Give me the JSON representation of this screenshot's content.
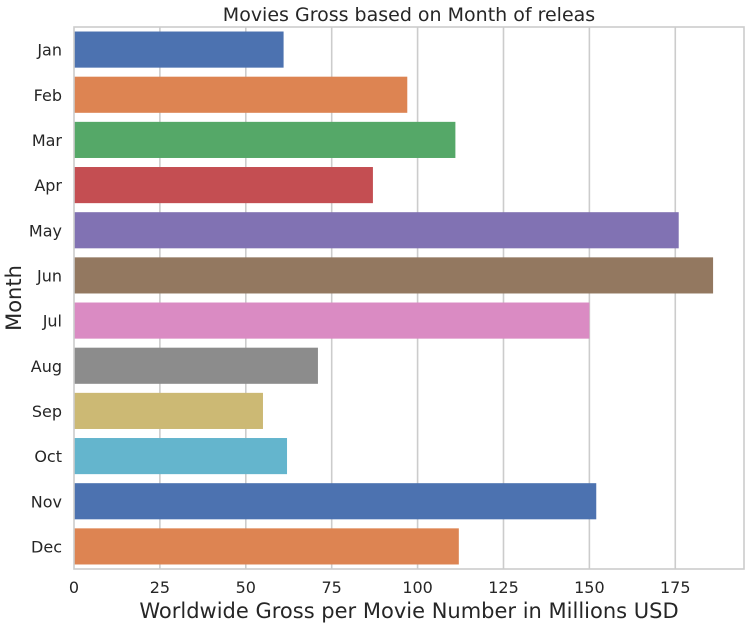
{
  "chart_data": {
    "type": "bar",
    "orientation": "horizontal",
    "title": "Movies Gross based on Month of releas",
    "xlabel": "Worldwide Gross per Movie Number in Millions USD",
    "ylabel": "Month",
    "categories": [
      "Jan",
      "Feb",
      "Mar",
      "Apr",
      "May",
      "Jun",
      "Jul",
      "Aug",
      "Sep",
      "Oct",
      "Nov",
      "Dec"
    ],
    "values": [
      61,
      97,
      111,
      87,
      176,
      186,
      150,
      71,
      55,
      62,
      152,
      112
    ],
    "colors": [
      "#4c72b0",
      "#dd8452",
      "#55a868",
      "#c44e52",
      "#8172b3",
      "#937860",
      "#da8bc3",
      "#8c8c8c",
      "#ccb974",
      "#64b5cd",
      "#4c72b0",
      "#dd8452"
    ],
    "xlim": [
      0,
      195
    ],
    "xticks": [
      0,
      25,
      50,
      75,
      100,
      125,
      150,
      175
    ],
    "grid": "vertical",
    "legend": "none"
  }
}
